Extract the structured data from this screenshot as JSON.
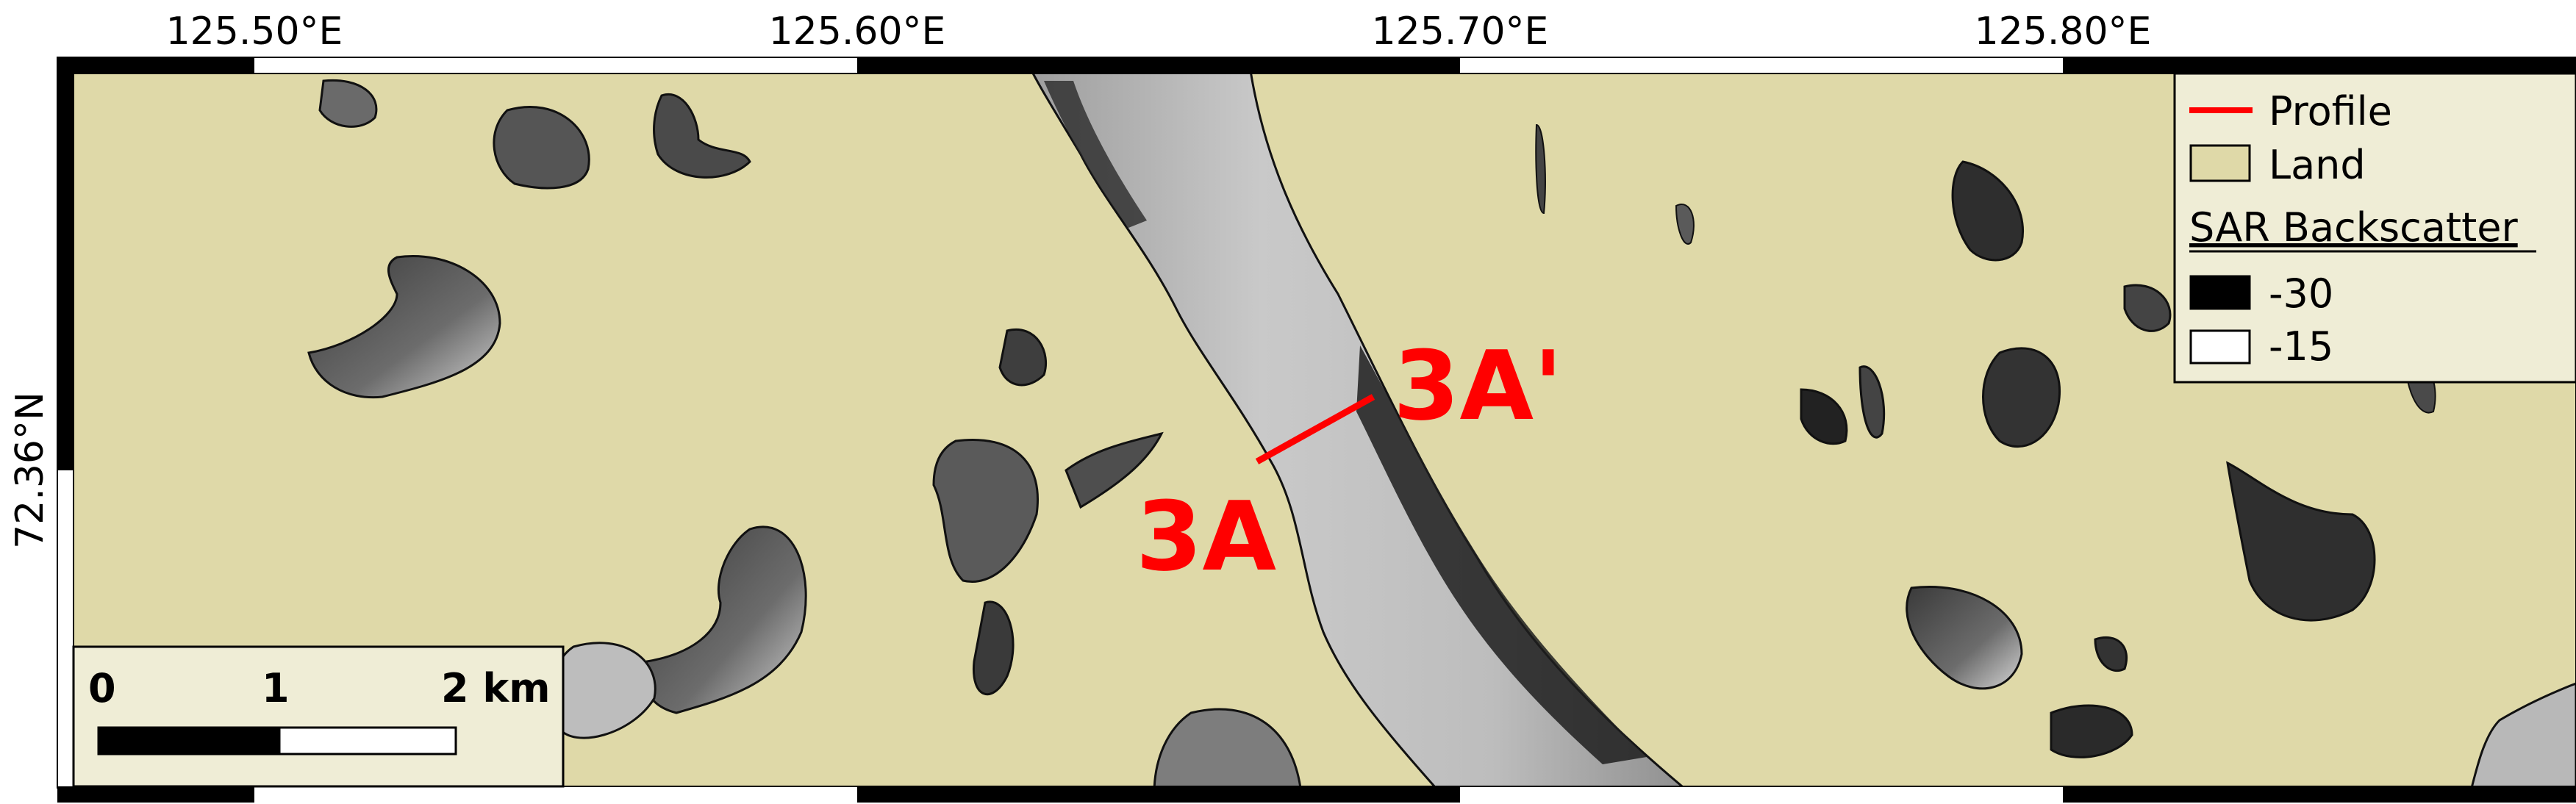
{
  "colors": {
    "land": "#dfd9a8",
    "water_dark": "#2b2b2b",
    "water_light": "#c8c8c8",
    "profile": "#ff0000",
    "frame": "#000000",
    "legend_bg": "#efedd6"
  },
  "axes": {
    "top_ticks": [
      {
        "label": "125.50°E",
        "lon": 125.5
      },
      {
        "label": "125.60°E",
        "lon": 125.6
      },
      {
        "label": "125.70°E",
        "lon": 125.7
      },
      {
        "label": "125.80°E",
        "lon": 125.8
      }
    ],
    "left_ticks": [
      {
        "label": "72.36°N",
        "lat": 72.36
      }
    ]
  },
  "profile": {
    "start_label": "3A",
    "end_label": "3A'"
  },
  "legend": {
    "profile_label": "Profile",
    "land_label": "Land",
    "sar_title": "SAR Backscatter",
    "sar_min_label": "-30",
    "sar_max_label": "-15"
  },
  "scale_bar": {
    "labels": [
      "0",
      "1",
      "2 km"
    ],
    "values_km": [
      0,
      1,
      2
    ]
  }
}
